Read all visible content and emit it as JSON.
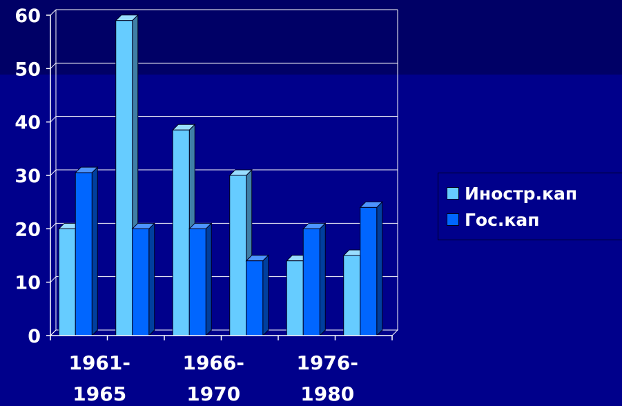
{
  "colors": {
    "background": "#00008b",
    "top_band": "#000066",
    "gridline": "#ffffff",
    "series_1": "#66ccff",
    "series_1_side": "#3f7fa6",
    "series_1_top": "#99ddff",
    "series_2": "#0066ff",
    "series_2_side": "#003f9e",
    "series_2_top": "#4d94ff",
    "text": "#ffffff"
  },
  "chart_data": {
    "type": "bar",
    "title": "",
    "xlabel": "",
    "ylabel": "",
    "ylim": [
      0,
      60
    ],
    "yticks": [
      0,
      10,
      20,
      30,
      40,
      50,
      60
    ],
    "grid": true,
    "legend_position": "right",
    "categories": [
      "1961-1965",
      "",
      "1966-1970",
      "",
      "1976-1980",
      ""
    ],
    "category_labels": [
      {
        "line1": "1961-",
        "line2": "1965"
      },
      {
        "line1": "1966-",
        "line2": "1970"
      },
      {
        "line1": "1976-",
        "line2": "1980"
      }
    ],
    "series": [
      {
        "name": "Иностр.кап",
        "values": [
          20,
          59,
          38.5,
          30,
          14,
          15
        ]
      },
      {
        "name": "Гос.кап",
        "values": [
          30.5,
          20,
          20,
          14,
          20,
          24
        ]
      }
    ]
  }
}
